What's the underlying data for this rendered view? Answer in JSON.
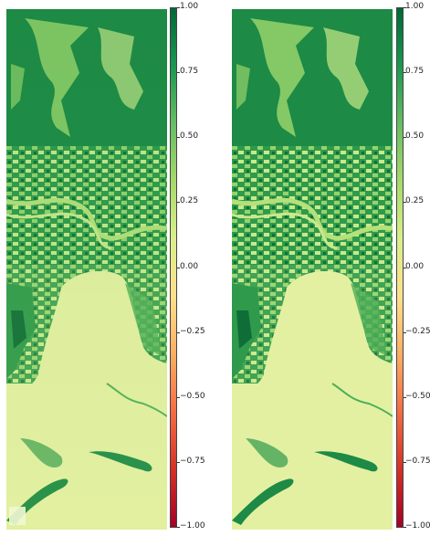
{
  "panels": [
    {
      "name": "left-ndvi-map"
    },
    {
      "name": "right-ndvi-map"
    }
  ],
  "colorbar": {
    "colors": [
      "#a50026",
      "#d73027",
      "#f46d43",
      "#fdae61",
      "#fee08b",
      "#d9ef8b",
      "#a6d96a",
      "#66bd63",
      "#1a9850",
      "#006837"
    ],
    "range": [
      -1.0,
      1.0
    ],
    "ticks": [
      "1.00",
      "0.75",
      "0.50",
      "0.25",
      "0.00",
      "−0.25",
      "−0.50",
      "−0.75",
      "−1.00"
    ]
  },
  "legend": {
    "ramp_desc": [
      "#e8f2a0",
      "#c9e98a",
      "#96d36b",
      "#4fae58",
      "#1d8a45",
      "#0f6e38"
    ]
  }
}
